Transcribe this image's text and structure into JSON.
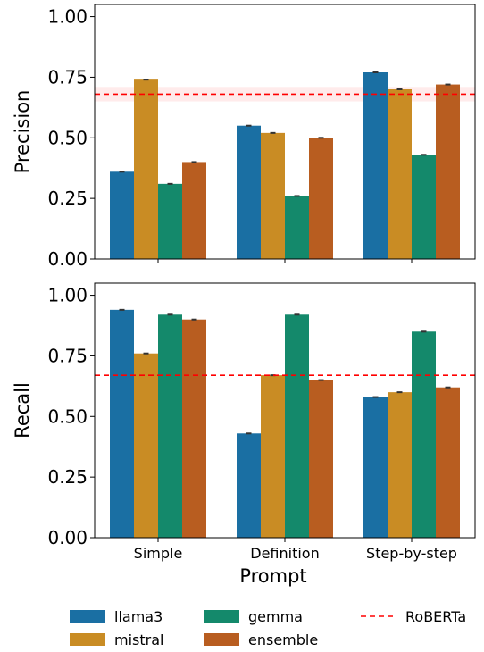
{
  "chart_data": {
    "type": "bar",
    "xlabel": "Prompt",
    "categories": [
      "Simple",
      "Definition",
      "Step-by-step"
    ],
    "colors": {
      "llama3": "#1a6fa3",
      "mistral": "#c98c24",
      "gemma": "#14896b",
      "ensemble": "#b85d20",
      "baseline": "#ff0000"
    },
    "legend": {
      "placement": "below",
      "entries": [
        {
          "name": "llama3",
          "kind": "bar"
        },
        {
          "name": "mistral",
          "kind": "bar"
        },
        {
          "name": "gemma",
          "kind": "bar"
        },
        {
          "name": "ensemble",
          "kind": "bar"
        },
        {
          "name": "RoBERTa",
          "kind": "dashed-line"
        }
      ]
    },
    "panels": [
      {
        "ylabel": "Precision",
        "ylim": [
          0,
          1.05
        ],
        "yticks": [
          "0.00",
          "0.25",
          "0.50",
          "0.75",
          "1.00"
        ],
        "series": [
          {
            "name": "llama3",
            "values": [
              0.36,
              0.55,
              0.77
            ]
          },
          {
            "name": "mistral",
            "values": [
              0.74,
              0.52,
              0.7
            ]
          },
          {
            "name": "gemma",
            "values": [
              0.31,
              0.26,
              0.43
            ]
          },
          {
            "name": "ensemble",
            "values": [
              0.4,
              0.5,
              0.72
            ]
          }
        ],
        "baseline": {
          "name": "RoBERTa",
          "value": 0.68,
          "band": [
            0.65,
            0.71
          ]
        }
      },
      {
        "ylabel": "Recall",
        "ylim": [
          0,
          1.05
        ],
        "yticks": [
          "0.00",
          "0.25",
          "0.50",
          "0.75",
          "1.00"
        ],
        "series": [
          {
            "name": "llama3",
            "values": [
              0.94,
              0.43,
              0.58
            ]
          },
          {
            "name": "mistral",
            "values": [
              0.76,
              0.67,
              0.6
            ]
          },
          {
            "name": "gemma",
            "values": [
              0.92,
              0.92,
              0.85
            ]
          },
          {
            "name": "ensemble",
            "values": [
              0.9,
              0.65,
              0.62
            ]
          }
        ],
        "baseline": {
          "name": "RoBERTa",
          "value": 0.67
        }
      }
    ]
  }
}
